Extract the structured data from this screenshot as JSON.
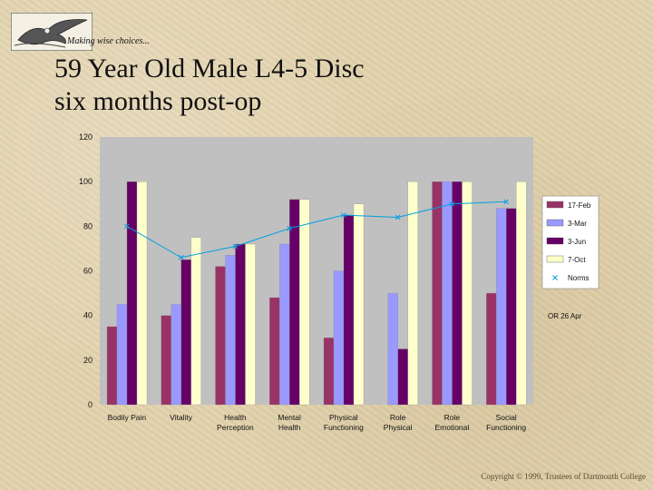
{
  "header": {
    "tagline": "Making wise choices...",
    "title_line1": "59 Year Old Male L4-5 Disc",
    "title_line2": "six months post-op"
  },
  "footer": "Copyright © 1999, Trustees of Dartmouth College",
  "logo_icon": "eagle-logo-icon",
  "colors": {
    "plot_bg": "#c0c0c0",
    "series": [
      "#993366",
      "#9999ff",
      "#660066",
      "#ffffcc"
    ],
    "norms": "#00a0e0"
  },
  "chart_data": {
    "type": "bar",
    "categories": [
      [
        "Bodily Pain"
      ],
      [
        "Vitality"
      ],
      [
        "Health",
        "Perception"
      ],
      [
        "Mental",
        "Health"
      ],
      [
        "Physical",
        "Functioning"
      ],
      [
        "Role",
        "Physical"
      ],
      [
        "Role",
        "Emotional"
      ],
      [
        "Social",
        "Functioning"
      ]
    ],
    "series": [
      {
        "name": "17-Feb",
        "values": [
          35,
          40,
          62,
          48,
          30,
          null,
          100,
          50
        ]
      },
      {
        "name": "3-Mar",
        "values": [
          45,
          45,
          67,
          72,
          60,
          50,
          100,
          88
        ]
      },
      {
        "name": "3-Jun",
        "values": [
          100,
          65,
          72,
          92,
          85,
          25,
          100,
          88
        ]
      },
      {
        "name": "7-Oct",
        "values": [
          100,
          75,
          72,
          92,
          90,
          100,
          100,
          100
        ]
      }
    ],
    "norms": {
      "name": "Norms",
      "values": [
        80,
        66,
        71,
        79,
        85,
        84,
        90,
        91
      ]
    },
    "ylim": [
      0,
      120
    ],
    "yticks": [
      0,
      20,
      40,
      60,
      80,
      100,
      120
    ],
    "annotation": "OR 26 Apr",
    "legend": "right"
  }
}
